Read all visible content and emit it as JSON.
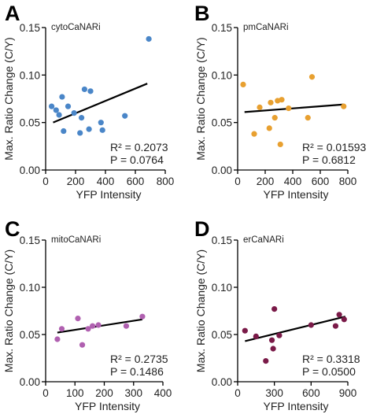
{
  "chart_data": [
    {
      "type": "scatter",
      "panel": "A",
      "name": "cytoCaNARi",
      "xlabel": "YFP Intensity",
      "ylabel": "Max. Ratio Change (C/Y)",
      "xlim": [
        0,
        800
      ],
      "ylim": [
        0,
        0.15
      ],
      "xticks": [
        0,
        200,
        400,
        600,
        800
      ],
      "yticks": [
        0.0,
        0.05,
        0.1,
        0.15
      ],
      "color": "#4a86c8",
      "x": [
        40,
        70,
        90,
        110,
        120,
        150,
        190,
        230,
        240,
        260,
        290,
        300,
        370,
        380,
        530,
        690
      ],
      "y": [
        0.067,
        0.063,
        0.058,
        0.077,
        0.041,
        0.067,
        0.06,
        0.039,
        0.055,
        0.085,
        0.043,
        0.083,
        0.05,
        0.042,
        0.057,
        0.138
      ],
      "fit": {
        "x": [
          50,
          680
        ],
        "y": [
          0.05,
          0.091
        ]
      },
      "r2_text": "R² = 0.2073",
      "p_text": "P = 0.0764"
    },
    {
      "type": "scatter",
      "panel": "B",
      "name": "pmCaNARi",
      "xlabel": "YFP Intensity",
      "ylabel": "Max. Ratio Change (C/Y)",
      "xlim": [
        0,
        800
      ],
      "ylim": [
        0,
        0.15
      ],
      "xticks": [
        0,
        200,
        400,
        600,
        800
      ],
      "yticks": [
        0.0,
        0.05,
        0.1,
        0.15
      ],
      "color": "#e8a030",
      "x": [
        40,
        120,
        160,
        230,
        240,
        270,
        290,
        320,
        310,
        370,
        510,
        540,
        770
      ],
      "y": [
        0.09,
        0.038,
        0.066,
        0.044,
        0.071,
        0.055,
        0.073,
        0.074,
        0.027,
        0.065,
        0.055,
        0.098,
        0.067
      ],
      "fit": {
        "x": [
          50,
          770
        ],
        "y": [
          0.061,
          0.069
        ]
      },
      "r2_text": "R² = 0.01593",
      "p_text": "P = 0.6812"
    },
    {
      "type": "scatter",
      "panel": "C",
      "name": "mitoCaNARi",
      "xlabel": "YFP Intensity",
      "ylabel": "Max. Ratio Change (C/Y)",
      "xlim": [
        0,
        400
      ],
      "ylim": [
        0,
        0.15
      ],
      "xticks": [
        0,
        100,
        200,
        300,
        400
      ],
      "yticks": [
        0.0,
        0.05,
        0.1,
        0.15
      ],
      "color": "#b060b0",
      "x": [
        40,
        55,
        110,
        125,
        145,
        160,
        180,
        275,
        330
      ],
      "y": [
        0.045,
        0.056,
        0.067,
        0.039,
        0.056,
        0.059,
        0.06,
        0.059,
        0.069
      ],
      "fit": {
        "x": [
          40,
          330
        ],
        "y": [
          0.052,
          0.066
        ]
      },
      "r2_text": "R² = 0.2735",
      "p_text": "P = 0.1486"
    },
    {
      "type": "scatter",
      "panel": "D",
      "name": "erCaNARi",
      "xlabel": "YFP Intensity",
      "ylabel": "Max. Ratio Change (C/Y)",
      "xlim": [
        0,
        900
      ],
      "ylim": [
        0,
        0.15
      ],
      "xticks": [
        0,
        300,
        600,
        900
      ],
      "yticks": [
        0.0,
        0.05,
        0.1,
        0.15
      ],
      "color": "#7a1a48",
      "x": [
        60,
        150,
        280,
        290,
        300,
        340,
        600,
        800,
        830,
        870,
        230
      ],
      "y": [
        0.054,
        0.048,
        0.044,
        0.035,
        0.077,
        0.049,
        0.06,
        0.059,
        0.071,
        0.066,
        0.022
      ],
      "fit": {
        "x": [
          60,
          880
        ],
        "y": [
          0.043,
          0.069
        ]
      },
      "r2_text": "R² = 0.3318",
      "p_text": "P = 0.0500"
    }
  ]
}
